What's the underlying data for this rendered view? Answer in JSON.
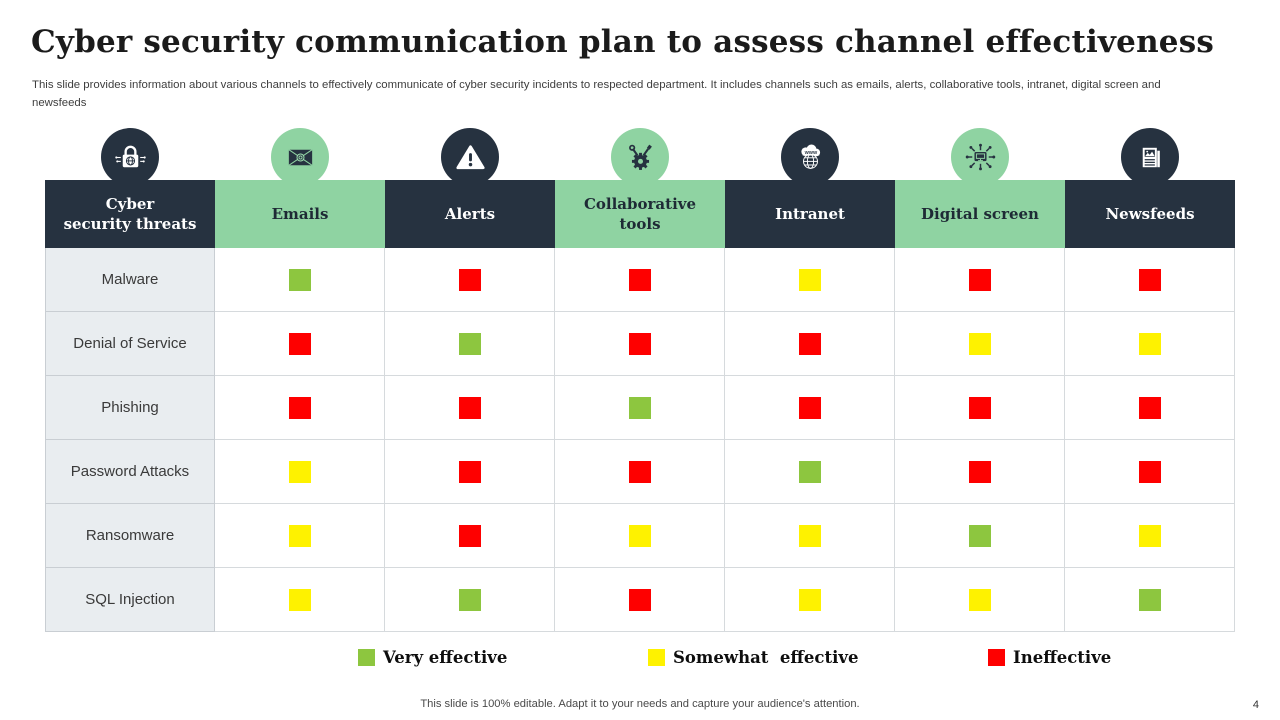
{
  "slide": {
    "title": "Cyber security communication plan to assess channel effectiveness",
    "subtitle": "This slide provides information about various channels to effectively  communicate of cyber  security incidents to respected department. It includes channels such as emails, alerts, collaborative tools, intranet, digital screen and newsfeeds",
    "footer": "This slide is 100% editable. Adapt it to your needs and capture your audience's attention.",
    "page_number": "4"
  },
  "table": {
    "corner_label": "Cyber\nsecurity threats",
    "column_themes": [
      "dark",
      "green",
      "dark",
      "green",
      "dark",
      "green",
      "dark"
    ],
    "column_icons": [
      "secure-lock-icon",
      "email-icon",
      "alert-icon",
      "collaboration-tools-icon",
      "intranet-icon",
      "digital-screen-icon",
      "newsfeeds-icon"
    ]
  },
  "legend": {
    "items": [
      {
        "key": "very",
        "label": "Very effective"
      },
      {
        "key": "somewhat",
        "label": "Somewhat  effective"
      },
      {
        "key": "ineffective",
        "label": "Ineffective"
      }
    ]
  },
  "colors": {
    "dark_navy": "#263240",
    "mint_green": "#8fd3a2",
    "row_label_bg": "#e9edf0"
  },
  "chart_data": {
    "type": "heatmap",
    "title": "Cyber security communication plan to assess channel effectiveness",
    "x_categories": [
      "Emails",
      "Alerts",
      "Collaborative tools",
      "Intranet",
      "Digital screen",
      "Newsfeeds"
    ],
    "y_categories": [
      "Malware",
      "Denial of Service",
      "Phishing",
      "Password Attacks",
      "Ransomware",
      "SQL Injection"
    ],
    "values": [
      [
        "very",
        "ineffective",
        "ineffective",
        "somewhat",
        "ineffective",
        "ineffective"
      ],
      [
        "ineffective",
        "very",
        "ineffective",
        "ineffective",
        "somewhat",
        "somewhat"
      ],
      [
        "ineffective",
        "ineffective",
        "very",
        "ineffective",
        "ineffective",
        "ineffective"
      ],
      [
        "somewhat",
        "ineffective",
        "ineffective",
        "very",
        "ineffective",
        "ineffective"
      ],
      [
        "somewhat",
        "ineffective",
        "somewhat",
        "somewhat",
        "very",
        "somewhat"
      ],
      [
        "somewhat",
        "very",
        "ineffective",
        "somewhat",
        "somewhat",
        "very"
      ]
    ],
    "value_labels": {
      "very": "Very effective",
      "somewhat": "Somewhat  effective",
      "ineffective": "Ineffective"
    },
    "value_colors": {
      "very": "#8dc63f",
      "somewhat": "#fef200",
      "ineffective": "#fe0000"
    },
    "legend_position": "bottom",
    "grid": true
  }
}
